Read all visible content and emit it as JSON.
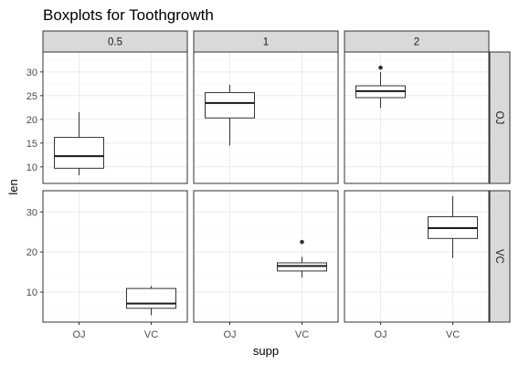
{
  "chart_data": {
    "type": "boxplot",
    "title": "Boxplots for Toothgrowth",
    "xlabel": "supp",
    "ylabel": "len",
    "categories": [
      "OJ",
      "VC"
    ],
    "col_facets": [
      "0.5",
      "1",
      "2"
    ],
    "row_facets": [
      "OJ",
      "VC"
    ],
    "grid": true,
    "facet_scales": "free_y",
    "rows": [
      {
        "facet": "OJ",
        "ylim": [
          6.5,
          34.2
        ],
        "yticks": [
          10,
          15,
          20,
          25,
          30
        ],
        "panels": [
          {
            "col": "0.5",
            "boxes": [
              {
                "category": "OJ",
                "min": 8.2,
                "q1": 9.7,
                "median": 12.25,
                "q3": 16.2,
                "max": 21.5,
                "outliers": []
              }
            ]
          },
          {
            "col": "1",
            "boxes": [
              {
                "category": "OJ",
                "min": 14.5,
                "q1": 20.3,
                "median": 23.45,
                "q3": 25.65,
                "max": 27.3,
                "outliers": []
              }
            ]
          },
          {
            "col": "2",
            "boxes": [
              {
                "category": "OJ",
                "min": 22.4,
                "q1": 24.58,
                "median": 25.95,
                "q3": 27.08,
                "max": 30.0,
                "outliers": [
                  30.9
                ]
              }
            ]
          }
        ]
      },
      {
        "facet": "VC",
        "ylim": [
          2.5,
          35.3
        ],
        "yticks": [
          10,
          20,
          30
        ],
        "panels": [
          {
            "col": "0.5",
            "boxes": [
              {
                "category": "VC",
                "min": 4.2,
                "q1": 5.95,
                "median": 7.15,
                "q3": 10.9,
                "max": 11.5,
                "outliers": []
              }
            ]
          },
          {
            "col": "1",
            "boxes": [
              {
                "category": "VC",
                "min": 13.6,
                "q1": 15.27,
                "median": 16.5,
                "q3": 17.3,
                "max": 18.8,
                "outliers": [
                  22.5
                ]
              }
            ]
          },
          {
            "col": "2",
            "boxes": [
              {
                "category": "VC",
                "min": 18.5,
                "q1": 23.38,
                "median": 25.95,
                "q3": 28.8,
                "max": 33.9,
                "outliers": []
              }
            ]
          }
        ]
      }
    ]
  }
}
